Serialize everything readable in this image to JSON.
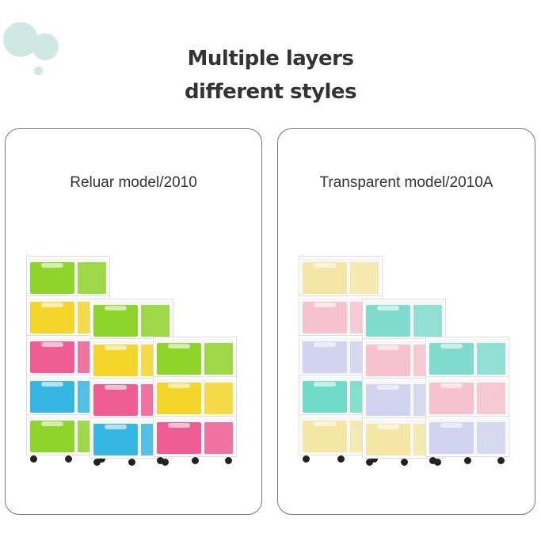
{
  "heading": {
    "line1": "Multiple layers",
    "line2": "different styles"
  },
  "cards": [
    {
      "label": "Reluar model/2010",
      "towers": [
        [
          "#8fd42a",
          "#f4d62a",
          "#ef5d93",
          "#35b6e3",
          "#8fd42a"
        ],
        [
          "#8fd42a",
          "#f4d62a",
          "#ef5d93",
          "#35b6e3"
        ],
        [
          "#8fd42a",
          "#f4d62a",
          "#ef5d93"
        ]
      ]
    },
    {
      "label": "Transparent model/2010A",
      "towers": [
        [
          "#f4e7a6",
          "#f6c2cf",
          "#d1d3ef",
          "#6fdcc8",
          "#f4e7a6"
        ],
        [
          "#7fdccc",
          "#f6c2cf",
          "#d1d3ef",
          "#f4e7a6"
        ],
        [
          "#7fdccc",
          "#f6c2cf",
          "#d1d3ef"
        ]
      ]
    }
  ],
  "accent_color": "#cfe8e2"
}
